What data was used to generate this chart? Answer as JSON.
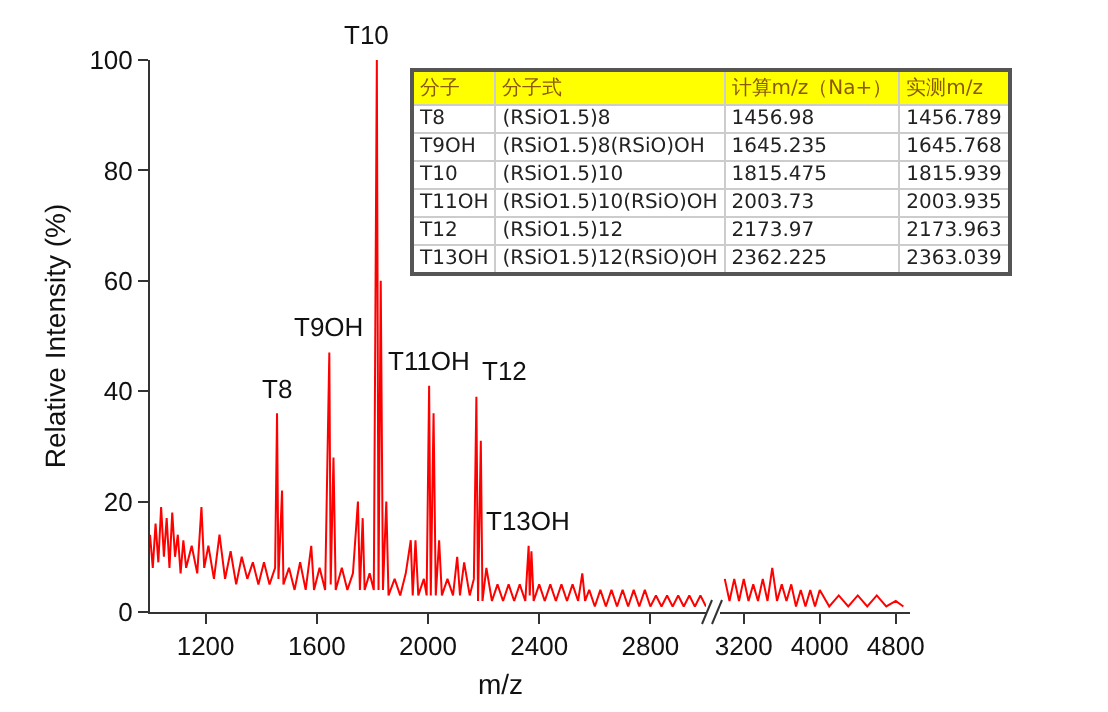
{
  "chart_data": [
    {
      "type": "line",
      "xlabel": "m/z",
      "ylabel": "Relative Intensity (%)",
      "color": "#ff0000",
      "marker": "none",
      "line_style": "solid",
      "x": [
        1000,
        1010,
        1020,
        1030,
        1040,
        1050,
        1060,
        1070,
        1080,
        1090,
        1100,
        1110,
        1120,
        1130,
        1150,
        1170,
        1185,
        1195,
        1210,
        1230,
        1250,
        1270,
        1290,
        1310,
        1330,
        1350,
        1370,
        1390,
        1410,
        1430,
        1450,
        1457,
        1462,
        1475,
        1480,
        1500,
        1520,
        1540,
        1560,
        1580,
        1590,
        1610,
        1630,
        1645,
        1650,
        1660,
        1668,
        1690,
        1710,
        1730,
        1748,
        1755,
        1765,
        1772,
        1790,
        1805,
        1816,
        1822,
        1830,
        1838,
        1850,
        1858,
        1880,
        1900,
        1920,
        1938,
        1945,
        1955,
        1965,
        1985,
        1995,
        2004,
        2010,
        2020,
        2028,
        2040,
        2050,
        2070,
        2090,
        2105,
        2115,
        2130,
        2150,
        2165,
        2174,
        2180,
        2190,
        2196,
        2210,
        2230,
        2250,
        2270,
        2290,
        2310,
        2330,
        2350,
        2362,
        2366,
        2372,
        2380,
        2400,
        2420,
        2440,
        2460,
        2480,
        2500,
        2520,
        2540,
        2555,
        2565,
        2580,
        2600,
        2620,
        2640,
        2660,
        2680,
        2700,
        2720,
        2740,
        2760,
        2780,
        2800,
        2820,
        2840,
        2860,
        2880,
        2900,
        2920,
        2940,
        2960,
        2980,
        3000
      ],
      "values": [
        14,
        8,
        16,
        9,
        19,
        10,
        17,
        8,
        18,
        10,
        14,
        7,
        13,
        8,
        12,
        7,
        19,
        8,
        12,
        6,
        14,
        6,
        11,
        5,
        10,
        6,
        9,
        5,
        9,
        5,
        8,
        36,
        6,
        22,
        5,
        8,
        4,
        9,
        4,
        12,
        4,
        8,
        4,
        47,
        5,
        28,
        4,
        8,
        4,
        7,
        20,
        4,
        17,
        4,
        7,
        4,
        100,
        4,
        60,
        4,
        20,
        3,
        6,
        3,
        7,
        13,
        3,
        13,
        3,
        6,
        3,
        41,
        3,
        36,
        3,
        13,
        3,
        6,
        3,
        10,
        3,
        9,
        3,
        6,
        39,
        2,
        31,
        2,
        8,
        2,
        5,
        2,
        5,
        2,
        5,
        2,
        12,
        3,
        11,
        2,
        5,
        2,
        5,
        2,
        5,
        2,
        5,
        2,
        7,
        2,
        4,
        1,
        4,
        1,
        4,
        1,
        4,
        1,
        4,
        1,
        4,
        1,
        3,
        1,
        3,
        1,
        3,
        1,
        3,
        1,
        3,
        1
      ],
      "xlim": [
        1000,
        3000
      ],
      "xticks": [
        1200,
        1600,
        2000,
        2400,
        2800
      ],
      "ylim": [
        0,
        100
      ],
      "yticks": [
        0,
        20,
        40,
        60,
        80,
        100
      ],
      "annotations": [
        {
          "text": "T8",
          "x": 1457,
          "y": 36
        },
        {
          "text": "T9OH",
          "x": 1645,
          "y": 47
        },
        {
          "text": "T10",
          "x": 1780,
          "y": 100
        },
        {
          "text": "T11OH",
          "x": 2004,
          "y": 41
        },
        {
          "text": "T12",
          "x": 2174,
          "y": 39
        },
        {
          "text": "T13OH",
          "x": 2362,
          "y": 12
        },
        "分子",
        "分子式",
        "计算m/z（Na+）",
        "实测m/z",
        "T8",
        "(RSiO1.5)8",
        "1456.98",
        "1456.789",
        "T9OH",
        "(RSiO1.5)8(RSiO)OH",
        "1645.235",
        "1645.768",
        "T10",
        "(RSiO1.5)10",
        "1815.475",
        "1815.939",
        "T11OH",
        "(RSiO1.5)10(RSiO)OH",
        "2003.73",
        "2003.935",
        "T12",
        "(RSiO1.5)12",
        "2173.97",
        "2173.963",
        "T13OH",
        "(RSiO1.5)12(RSiO)OH",
        "2362.225",
        "2363.039"
      ]
    },
    {
      "type": "line",
      "color": "#ff0000",
      "marker": "none",
      "line_style": "solid",
      "tick_labels": "x",
      "x": [
        3000,
        3050,
        3100,
        3150,
        3200,
        3250,
        3300,
        3350,
        3400,
        3450,
        3500,
        3550,
        3600,
        3650,
        3700,
        3750,
        3800,
        3850,
        3900,
        3950,
        4000,
        4100,
        4200,
        4300,
        4400,
        4500,
        4600,
        4700,
        4800,
        4880
      ],
      "values": [
        6,
        2,
        6,
        2,
        6,
        2,
        5,
        2,
        6,
        2,
        8,
        2,
        5,
        2,
        5,
        1,
        4,
        1,
        4,
        1,
        4,
        1,
        3,
        1,
        3,
        1,
        3,
        1,
        2,
        1
      ],
      "xlim": [
        2950,
        4950
      ],
      "xticks": [
        3200,
        4000,
        4800
      ],
      "ylim": [
        0,
        100
      ],
      "yticks": [
        0,
        20,
        40,
        60,
        80,
        100
      ]
    }
  ]
}
